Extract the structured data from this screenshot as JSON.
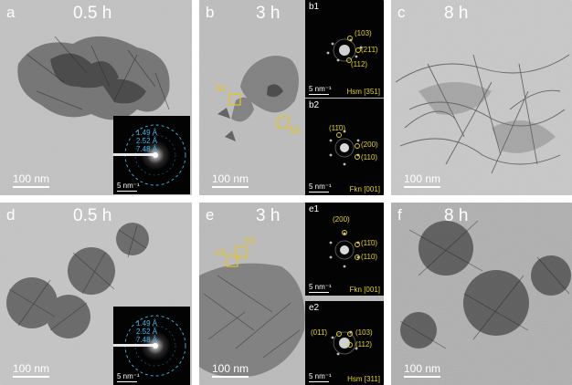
{
  "panels": [
    {
      "id": "a",
      "label": "a",
      "time": "0.5 h",
      "scale": "100 nm"
    },
    {
      "id": "b",
      "label": "b",
      "time": "3 h",
      "scale": "100 nm"
    },
    {
      "id": "c",
      "label": "c",
      "time": "8 h",
      "scale": "100 nm"
    },
    {
      "id": "d",
      "label": "d",
      "time": "0.5 h",
      "scale": "100 nm"
    },
    {
      "id": "e",
      "label": "e",
      "time": "3 h",
      "scale": "100 nm"
    },
    {
      "id": "f",
      "label": "f",
      "time": "8 h",
      "scale": "100 nm"
    }
  ],
  "saed": {
    "rings": [
      "1.49 Å",
      "2.52 Å",
      "7.48 Å"
    ],
    "scale": "5 nm⁻¹"
  },
  "insets": {
    "b1": {
      "label": "b1",
      "phase": "Hsm [351]",
      "indices": [
        "(103)",
        "(21̄1̄)",
        "(112)"
      ],
      "scale": "5 nm⁻¹"
    },
    "b2": {
      "label": "b2",
      "phase": "Fkn [001]",
      "indices": [
        "(11̄0)",
        "(200)",
        "(110)"
      ],
      "scale": "5 nm⁻¹"
    },
    "e1": {
      "label": "e1",
      "phase": "Fkn [001]",
      "indices": [
        "(200)",
        "(11̄0)",
        "(110)"
      ],
      "scale": "5 nm⁻¹"
    },
    "e2": {
      "label": "e2",
      "phase": "Hsm [311]",
      "indices": [
        "(011̄)",
        "(103)",
        "(112)"
      ],
      "scale": "5 nm⁻¹"
    }
  },
  "boxes": {
    "b1": "b1",
    "b2": "b2",
    "e1": "e1",
    "e2": "e2"
  },
  "colors": {
    "index_yellow": "#e6d21a",
    "ring_blue": "#3fb6e8",
    "tem_bg": "#b9b9b9"
  }
}
